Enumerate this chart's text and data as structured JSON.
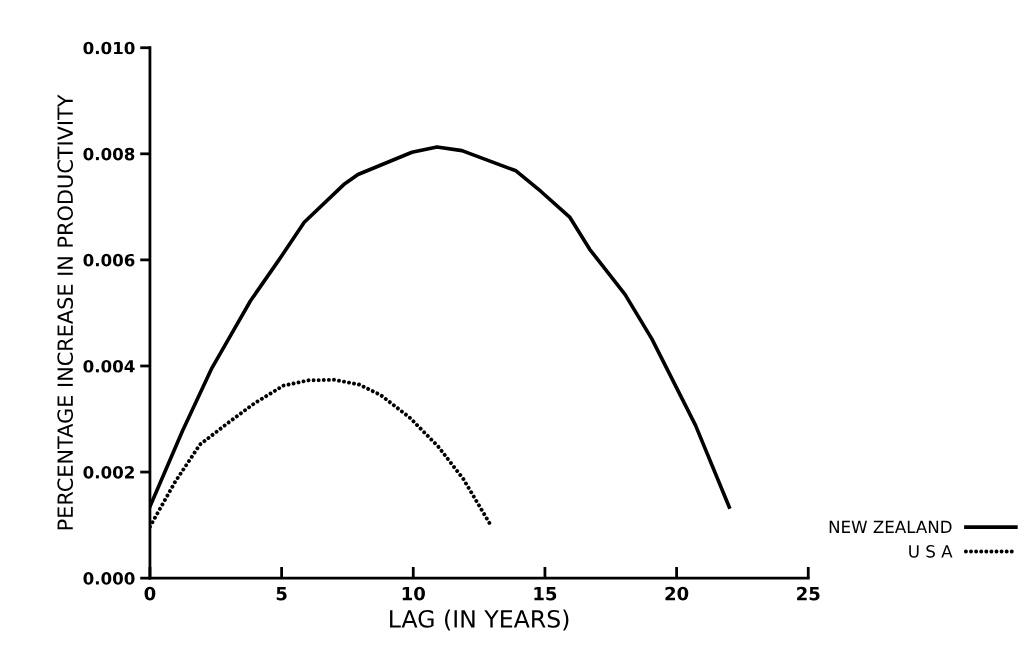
{
  "chart_data": {
    "type": "line",
    "xlabel": "LAG (IN YEARS)",
    "ylabel": "PERCENTAGE INCREASE IN PRODUCTIVITY",
    "xlim": [
      0,
      25
    ],
    "xticks": [
      0,
      5,
      10,
      15,
      20,
      25
    ],
    "ylim": [
      0,
      0.01
    ],
    "yticks": [
      {
        "value": 0,
        "label": "0.000"
      },
      {
        "value": 0.002,
        "label": "0.002"
      },
      {
        "value": 0.004,
        "label": "0.004"
      },
      {
        "value": 0.006,
        "label": "0.006"
      },
      {
        "value": 0.008,
        "label": "0.008"
      },
      {
        "value": 0.01,
        "label": "0.010"
      }
    ],
    "grid": false,
    "legend": "right",
    "marker": "none",
    "series": [
      {
        "name": "NEW ZEALAND",
        "color": "#000000",
        "line_style": "solid",
        "x": [
          0,
          1.23,
          2.33,
          3.0,
          3.82,
          4.9,
          5.86,
          7.36,
          7.9,
          9.95,
          10.9,
          11.85,
          13.9,
          14.85,
          15.95,
          16.7,
          18.04,
          19.06,
          20.72,
          22.0
        ],
        "values": [
          0.00135,
          0.00277,
          0.00394,
          0.00452,
          0.00523,
          0.006,
          0.00671,
          0.00742,
          0.00761,
          0.00803,
          0.00813,
          0.00806,
          0.00768,
          0.00729,
          0.0068,
          0.0062,
          0.00535,
          0.00451,
          0.00288,
          0.00134
        ]
      },
      {
        "name": "U S A",
        "color": "#000000",
        "line_style": "dotted",
        "x": [
          0,
          0.95,
          1.9,
          3.0,
          3.95,
          5.07,
          6.03,
          6.99,
          7.95,
          8.77,
          9.86,
          10.95,
          11.9,
          12.94
        ],
        "values": [
          0.00097,
          0.00181,
          0.00252,
          0.00294,
          0.00329,
          0.00363,
          0.00373,
          0.00374,
          0.00365,
          0.00345,
          0.00303,
          0.00248,
          0.00187,
          0.001
        ]
      }
    ]
  }
}
